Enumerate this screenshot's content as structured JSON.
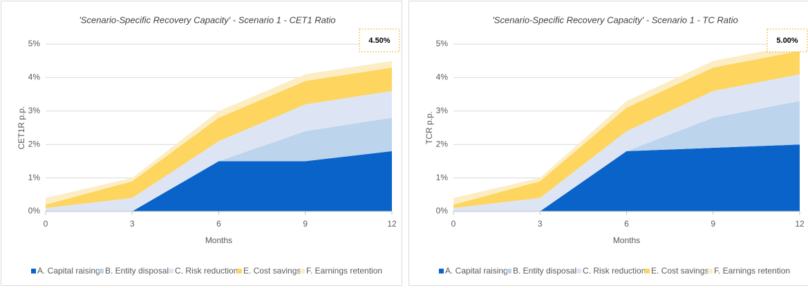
{
  "chart_data": [
    {
      "type": "area",
      "stacked": true,
      "title": "'Scenario-Specific Recovery Capacity' - Scenario 1 - CET1 Ratio",
      "annotation": "4.50%",
      "x_label": "Months",
      "y_label": "CET1R p.p.",
      "x": [
        0,
        3,
        6,
        9,
        12
      ],
      "xlim": [
        0,
        12
      ],
      "xticks": [
        0,
        3,
        6,
        9,
        12
      ],
      "ylim": [
        0,
        5
      ],
      "yticks": [
        {
          "value": 0,
          "label": "0%"
        },
        {
          "value": 1,
          "label": "1%"
        },
        {
          "value": 2,
          "label": "2%"
        },
        {
          "value": 3,
          "label": "3%"
        },
        {
          "value": 4,
          "label": "4%"
        },
        {
          "value": 5,
          "label": "5%"
        }
      ],
      "grid": true,
      "series": [
        {
          "name": "A. Capital raising",
          "color": "#0a63c9",
          "values": [
            0,
            0,
            1.5,
            1.5,
            1.8
          ]
        },
        {
          "name": "B. Entity disposal",
          "color": "#bcd4ec",
          "values": [
            0,
            0,
            0,
            0.9,
            1.0
          ]
        },
        {
          "name": "C. Risk reduction",
          "color": "#dde5f5",
          "values": [
            0.1,
            0.4,
            0.6,
            0.8,
            0.8
          ]
        },
        {
          "name": "E. Cost savings",
          "color": "#fdd55f",
          "values": [
            0.1,
            0.5,
            0.7,
            0.7,
            0.7
          ]
        },
        {
          "name": "F. Earnings retention",
          "color": "#fcedc4",
          "values": [
            0.2,
            0.1,
            0.2,
            0.2,
            0.2
          ]
        }
      ]
    },
    {
      "type": "area",
      "stacked": true,
      "title": "'Scenario-Specific Recovery Capacity' - Scenario 1 - TC Ratio",
      "annotation": "5.00%",
      "x_label": "Months",
      "y_label": "TCR p.p.",
      "x": [
        0,
        3,
        6,
        9,
        12
      ],
      "xlim": [
        0,
        12
      ],
      "xticks": [
        0,
        3,
        6,
        9,
        12
      ],
      "ylim": [
        0,
        5
      ],
      "yticks": [
        {
          "value": 0,
          "label": "0%"
        },
        {
          "value": 1,
          "label": "1%"
        },
        {
          "value": 2,
          "label": "2%"
        },
        {
          "value": 3,
          "label": "3%"
        },
        {
          "value": 4,
          "label": "4%"
        },
        {
          "value": 5,
          "label": "5%"
        }
      ],
      "grid": true,
      "series": [
        {
          "name": "A. Capital raising",
          "color": "#0a63c9",
          "values": [
            0,
            0,
            1.8,
            1.9,
            2.0
          ]
        },
        {
          "name": "B. Entity disposal",
          "color": "#bcd4ec",
          "values": [
            0,
            0,
            0,
            0.9,
            1.3
          ]
        },
        {
          "name": "C. Risk reduction",
          "color": "#dde5f5",
          "values": [
            0.1,
            0.4,
            0.6,
            0.8,
            0.8
          ]
        },
        {
          "name": "E. Cost savings",
          "color": "#fdd55f",
          "values": [
            0.1,
            0.5,
            0.7,
            0.7,
            0.7
          ]
        },
        {
          "name": "F. Earnings retention",
          "color": "#fcedc4",
          "values": [
            0.2,
            0.1,
            0.2,
            0.2,
            0.2
          ]
        }
      ]
    }
  ]
}
